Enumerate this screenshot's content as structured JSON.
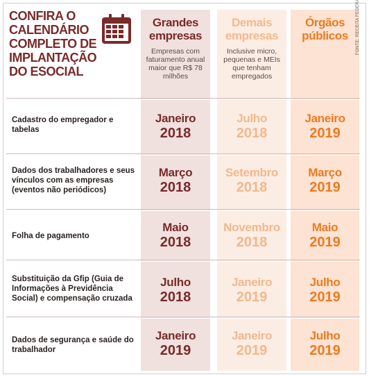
{
  "title": "CONFIRA O CALENDÁRIO COMPLETO DE IMPLANTAÇÃO DO eSOCIAL",
  "icon": "calendar-icon",
  "source": "FONTE: RECEITA FEDERAL",
  "colors": {
    "grandes": "#7a2a2a",
    "demais": "#f2b88c",
    "orgaos": "#ee7a1e",
    "grandes_bg": "#f0e1de",
    "demais_bg": "#fcede4",
    "orgaos_bg": "#fde3d3"
  },
  "columns": [
    {
      "title_line1": "Grandes",
      "title_line2": "empresas",
      "subtitle": "Empresas com faturamento anual maior que R$ 78 milhões"
    },
    {
      "title_line1": "Demais",
      "title_line2": "empresas",
      "subtitle": "Inclusive micro, pequenas e MEIs que tenham empregados"
    },
    {
      "title_line1": "Órgãos",
      "title_line2": "públicos",
      "subtitle": ""
    }
  ],
  "rows": [
    {
      "label": "Cadastro do empregador e tabelas",
      "grandes": {
        "month": "Janeiro",
        "year": "2018"
      },
      "demais": {
        "month": "Julho",
        "year": "2018"
      },
      "orgaos": {
        "month": "Janeiro",
        "year": "2019"
      }
    },
    {
      "label": "Dados dos trabalhadores e seus vínculos com as empresas (eventos não periódicos)",
      "grandes": {
        "month": "Março",
        "year": "2018"
      },
      "demais": {
        "month": "Setembro",
        "year": "2018"
      },
      "orgaos": {
        "month": "Março",
        "year": "2019"
      }
    },
    {
      "label": "Folha de pagamento",
      "grandes": {
        "month": "Maio",
        "year": "2018"
      },
      "demais": {
        "month": "Novembro",
        "year": "2018"
      },
      "orgaos": {
        "month": "Maio",
        "year": "2019"
      }
    },
    {
      "label": "Substituição da Gfip (Guia de Informações à Previdência Social) e compensação cruzada",
      "grandes": {
        "month": "Julho",
        "year": "2018"
      },
      "demais": {
        "month": "Janeiro",
        "year": "2019"
      },
      "orgaos": {
        "month": "Julho",
        "year": "2019"
      }
    },
    {
      "label": "Dados de segurança e saúde do trabalhador",
      "grandes": {
        "month": "Janeiro",
        "year": "2019"
      },
      "demais": {
        "month": "Janeiro",
        "year": "2019"
      },
      "orgaos": {
        "month": "Julho",
        "year": "2019"
      }
    }
  ]
}
